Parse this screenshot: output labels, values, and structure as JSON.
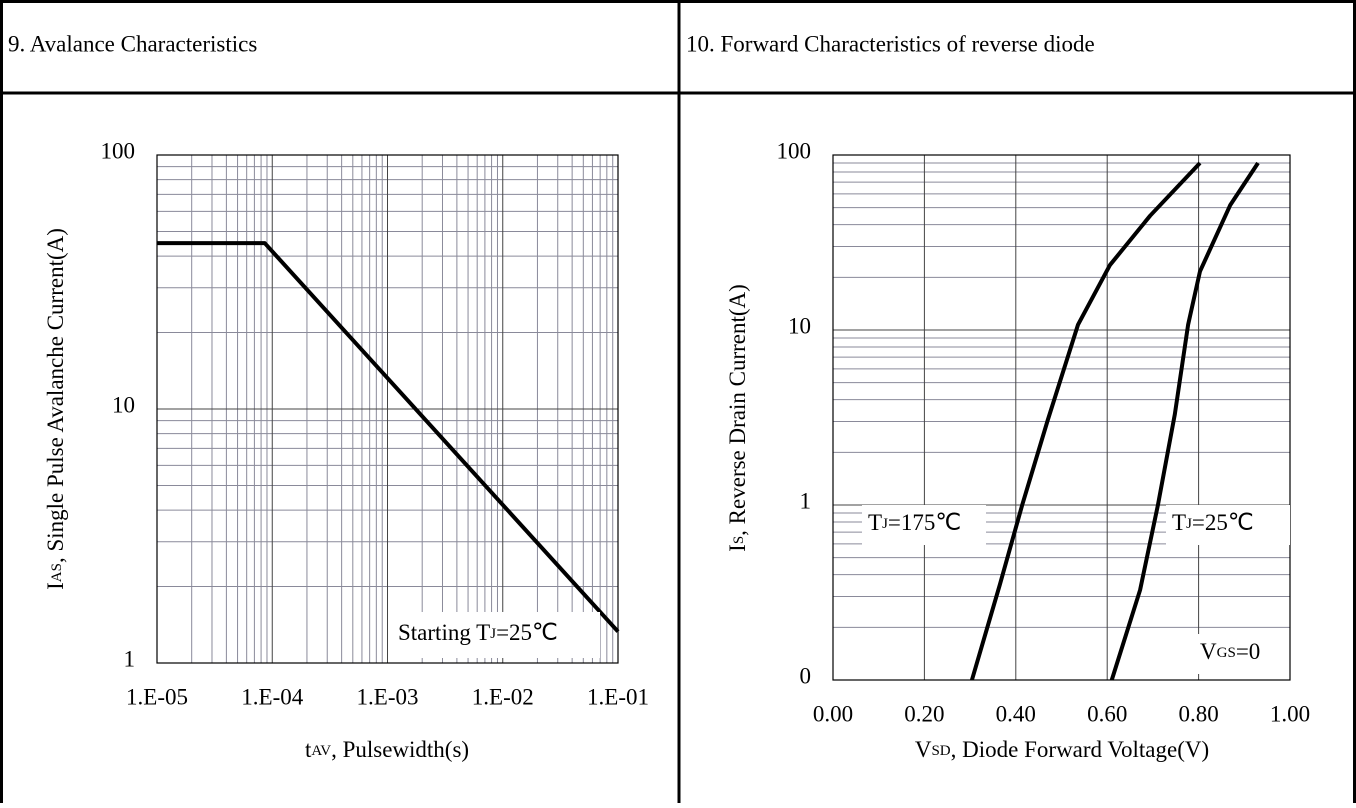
{
  "headings": [
    "9. Avalance Characteristics",
    "10. Forward Characteristics of reverse diode"
  ],
  "chart_data": [
    {
      "type": "line",
      "xscale": "log",
      "yscale": "log",
      "grid": true,
      "xlabel": [
        {
          "text": "t"
        },
        {
          "text": "AV",
          "sub": true
        },
        {
          "text": ", Pulsewidth(s)"
        }
      ],
      "ylabel": [
        {
          "text": "I"
        },
        {
          "text": "AS",
          "sub": true
        },
        {
          "text": ", Single Pulse Avalanche Current(A)"
        }
      ],
      "xlim": [
        1e-05,
        0.1
      ],
      "ylim": [
        1,
        100
      ],
      "xticks": [
        {
          "value": 1e-05,
          "label": "1.E-05"
        },
        {
          "value": 0.0001,
          "label": "1.E-04"
        },
        {
          "value": 0.001,
          "label": "1.E-03"
        },
        {
          "value": 0.01,
          "label": "1.E-02"
        },
        {
          "value": 0.1,
          "label": "1.E-01"
        }
      ],
      "yticks": [
        1,
        10,
        100
      ],
      "series": [
        {
          "color": "#000000",
          "x": [
            1e-05,
            8.6e-05,
            0.1
          ],
          "values": [
            45,
            45,
            1.33
          ]
        }
      ],
      "annotations": [
        [
          {
            "text": "Starting T"
          },
          {
            "text": "J",
            "sub": true
          },
          {
            "text": "=25℃"
          }
        ]
      ]
    },
    {
      "type": "line",
      "xscale": "linear",
      "yscale": "log",
      "grid": true,
      "xlabel": [
        {
          "text": "V"
        },
        {
          "text": "SD",
          "sub": true
        },
        {
          "text": ", Diode Forward Voltage(V)"
        }
      ],
      "ylabel": [
        {
          "text": "I"
        },
        {
          "text": "S",
          "sub": true
        },
        {
          "text": ", Reverse Drain Current(A)"
        }
      ],
      "xlim": [
        0,
        1
      ],
      "ylim": [
        0.1,
        100
      ],
      "xticks": [
        {
          "value": 0,
          "label": "0.00"
        },
        {
          "value": 0.2,
          "label": "0.20"
        },
        {
          "value": 0.4,
          "label": "0.40"
        },
        {
          "value": 0.6,
          "label": "0.60"
        },
        {
          "value": 0.8,
          "label": "0.80"
        },
        {
          "value": 1,
          "label": "1.00"
        }
      ],
      "yticks": [
        {
          "value": 0.1,
          "label": "0"
        },
        1,
        10,
        100
      ],
      "series": [
        {
          "color": "#000000",
          "x": [
            0.304,
            0.365,
            0.414,
            0.47,
            0.536,
            0.606,
            0.694,
            0.803
          ],
          "values": [
            0.1,
            0.35,
            1,
            3.06,
            10.7,
            23.5,
            45,
            90
          ]
        },
        {
          "color": "#000000",
          "x": [
            0.61,
            0.672,
            0.711,
            0.748,
            0.777,
            0.803,
            0.869,
            0.93
          ],
          "values": [
            0.1,
            0.327,
            1,
            3.3,
            10.7,
            21.6,
            51.6,
            90
          ]
        }
      ],
      "annotations": [
        [
          {
            "text": "T"
          },
          {
            "text": "J",
            "sub": true
          },
          {
            "text": "=175℃"
          }
        ],
        [
          {
            "text": "T"
          },
          {
            "text": "J",
            "sub": true
          },
          {
            "text": "=25℃"
          }
        ],
        [
          {
            "text": "V"
          },
          {
            "text": "GS",
            "sub": true
          },
          {
            "text": "=0"
          }
        ]
      ]
    }
  ]
}
